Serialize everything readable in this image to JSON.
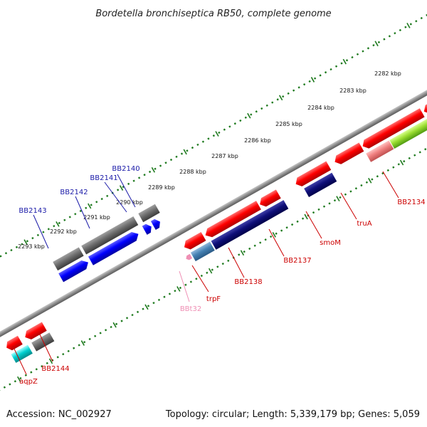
{
  "title": "Bordetella bronchiseptica RB50, complete genome",
  "footer": {
    "accession": "Accession: NC_002927",
    "info": "Topology: circular; Length: 5,339,179 bp; Genes: 5,059"
  },
  "colors": {
    "backbone": "#8c8c8c",
    "tick": "#1e7a1e",
    "forward_label": "#cc0000",
    "reverse_label": "#1a1aa8",
    "trna_label": "#ef8fb4"
  },
  "scale_labels": [
    "2282 kbp",
    "2283 kbp",
    "2284 kbp",
    "2285 kbp",
    "2286 kbp",
    "2287 kbp",
    "2288 kbp",
    "2289 kbp",
    "2290 kbp",
    "2291 kbp",
    "2292 kbp",
    "2293 kbp"
  ],
  "gene_labels": {
    "reverse": [
      "BB2140",
      "BB2141",
      "BB2142",
      "BB2143"
    ],
    "forward": [
      "BB2134",
      "truA",
      "smoM",
      "BB2137",
      "BB2138",
      "trpF",
      "BBt32",
      "BB2144",
      "aqpZ"
    ]
  }
}
